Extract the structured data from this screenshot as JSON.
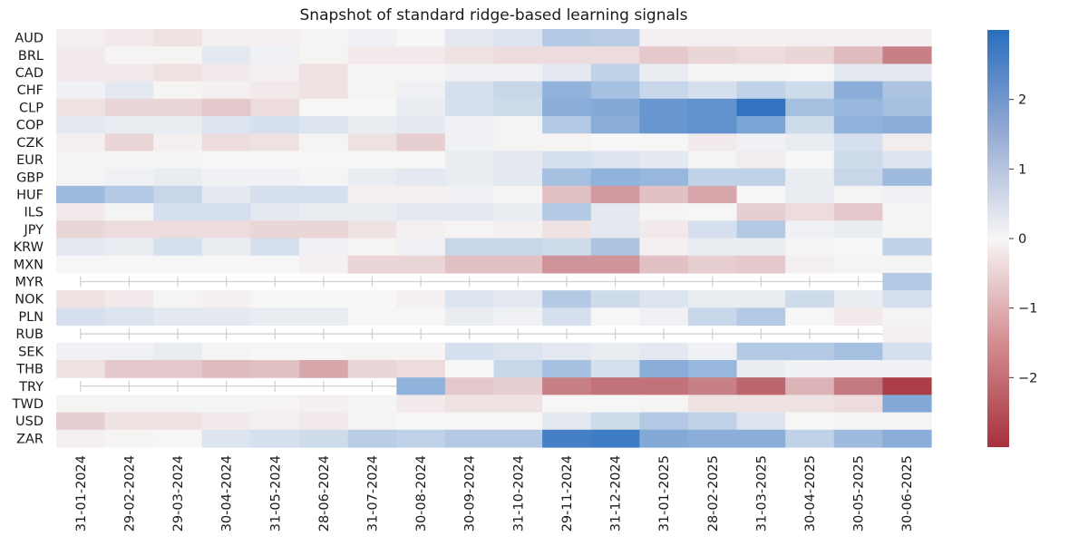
{
  "chart_data": {
    "type": "heatmap",
    "title": "Snapshot of standard ridge-based learning signals",
    "xlabel": "",
    "ylabel": "",
    "rows": [
      "AUD",
      "BRL",
      "CAD",
      "CHF",
      "CLP",
      "COP",
      "CZK",
      "EUR",
      "GBP",
      "HUF",
      "ILS",
      "JPY",
      "KRW",
      "MXN",
      "MYR",
      "NOK",
      "PLN",
      "RUB",
      "SEK",
      "THB",
      "TRY",
      "TWD",
      "USD",
      "ZAR"
    ],
    "columns": [
      "31-01-2024",
      "29-02-2024",
      "29-03-2024",
      "30-04-2024",
      "31-05-2024",
      "28-06-2024",
      "31-07-2024",
      "30-08-2024",
      "30-09-2024",
      "31-10-2024",
      "29-11-2024",
      "31-12-2024",
      "31-01-2025",
      "28-02-2025",
      "31-03-2025",
      "30-04-2025",
      "30-05-2025",
      "30-06-2025"
    ],
    "values": [
      [
        -0.1,
        -0.2,
        -0.3,
        -0.1,
        -0.1,
        -0.05,
        0.1,
        0.0,
        0.3,
        0.4,
        1.0,
        0.9,
        -0.1,
        -0.1,
        -0.1,
        -0.1,
        -0.1,
        -0.1
      ],
      [
        -0.2,
        -0.05,
        -0.05,
        0.3,
        0.1,
        -0.05,
        -0.2,
        -0.2,
        -0.3,
        -0.4,
        -0.4,
        -0.4,
        -0.7,
        -0.5,
        -0.4,
        -0.5,
        -0.9,
        -1.8
      ],
      [
        -0.2,
        -0.2,
        -0.3,
        -0.2,
        -0.1,
        -0.3,
        -0.05,
        -0.05,
        0.1,
        0.1,
        0.3,
        0.8,
        0.2,
        0.05,
        -0.05,
        0.0,
        0.3,
        0.3
      ],
      [
        0.1,
        0.3,
        -0.05,
        -0.1,
        -0.2,
        -0.3,
        -0.05,
        0.1,
        0.5,
        0.7,
        1.5,
        1.2,
        0.7,
        0.5,
        0.8,
        0.6,
        1.6,
        1.1
      ],
      [
        -0.3,
        -0.5,
        -0.5,
        -0.7,
        -0.4,
        0.0,
        0.0,
        0.2,
        0.5,
        0.6,
        1.6,
        1.7,
        2.1,
        2.2,
        2.9,
        1.2,
        1.4,
        1.2
      ],
      [
        0.3,
        0.2,
        0.2,
        0.4,
        0.5,
        0.4,
        0.2,
        0.3,
        0.1,
        0.05,
        1.0,
        1.6,
        2.1,
        2.2,
        1.8,
        0.6,
        1.5,
        1.6
      ],
      [
        -0.1,
        -0.5,
        -0.1,
        -0.4,
        -0.3,
        -0.05,
        -0.3,
        -0.6,
        0.1,
        0.05,
        -0.05,
        0.0,
        0.0,
        -0.2,
        0.1,
        0.2,
        0.5,
        -0.15
      ],
      [
        -0.05,
        0.05,
        0.05,
        0.0,
        0.0,
        0.0,
        0.0,
        0.0,
        0.2,
        0.3,
        0.5,
        0.4,
        0.3,
        0.05,
        -0.15,
        0.0,
        0.6,
        0.4
      ],
      [
        -0.05,
        0.1,
        0.2,
        0.1,
        0.1,
        0.05,
        0.2,
        0.3,
        0.2,
        0.3,
        1.2,
        1.5,
        1.4,
        0.8,
        0.8,
        0.2,
        0.7,
        1.3
      ],
      [
        1.3,
        1.0,
        0.7,
        0.3,
        0.5,
        0.5,
        -0.1,
        -0.1,
        0.1,
        -0.05,
        -0.8,
        -1.4,
        -0.8,
        -1.2,
        0.0,
        0.2,
        0.05,
        0.1
      ],
      [
        -0.2,
        0.05,
        0.5,
        0.5,
        0.3,
        0.2,
        0.2,
        0.3,
        0.3,
        0.2,
        1.0,
        0.3,
        -0.05,
        0.0,
        -0.6,
        -0.4,
        -0.7,
        -0.05
      ],
      [
        -0.5,
        -0.4,
        -0.4,
        -0.4,
        -0.5,
        -0.5,
        -0.3,
        -0.1,
        -0.05,
        -0.1,
        -0.3,
        0.3,
        -0.2,
        0.5,
        1.0,
        0.1,
        0.2,
        -0.05
      ],
      [
        0.3,
        0.2,
        0.5,
        0.2,
        0.5,
        0.1,
        -0.05,
        0.1,
        0.7,
        0.7,
        0.6,
        1.1,
        -0.1,
        0.2,
        0.2,
        -0.05,
        0.0,
        0.8
      ],
      [
        0.0,
        0.0,
        0.0,
        0.0,
        0.0,
        -0.1,
        -0.5,
        -0.5,
        -0.8,
        -0.8,
        -1.5,
        -1.5,
        -0.8,
        -0.6,
        -0.7,
        -0.1,
        0.05,
        0.05
      ],
      [
        null,
        null,
        null,
        null,
        null,
        null,
        null,
        null,
        null,
        null,
        null,
        null,
        null,
        null,
        null,
        null,
        null,
        1.0
      ],
      [
        -0.3,
        -0.2,
        -0.05,
        -0.1,
        0.0,
        0.0,
        0.0,
        -0.1,
        0.4,
        0.3,
        1.0,
        0.6,
        0.4,
        0.2,
        0.2,
        0.6,
        0.2,
        0.5
      ],
      [
        0.5,
        0.4,
        0.3,
        0.3,
        0.2,
        0.2,
        0.0,
        0.0,
        0.2,
        0.1,
        0.5,
        0.0,
        0.1,
        0.7,
        1.0,
        0.0,
        -0.2,
        0.05
      ],
      [
        null,
        null,
        null,
        null,
        null,
        null,
        null,
        null,
        null,
        null,
        null,
        null,
        null,
        null,
        null,
        null,
        null,
        -0.1
      ],
      [
        0.1,
        0.1,
        0.2,
        -0.05,
        0.0,
        0.0,
        -0.05,
        -0.05,
        0.5,
        0.4,
        0.3,
        0.2,
        0.3,
        0.1,
        1.0,
        1.0,
        1.2,
        0.5
      ],
      [
        -0.3,
        -0.7,
        -0.7,
        -0.9,
        -0.8,
        -1.2,
        -0.5,
        -0.4,
        0.0,
        0.7,
        1.2,
        0.5,
        1.6,
        1.4,
        0.2,
        0.1,
        0.1,
        0.1
      ],
      [
        null,
        null,
        null,
        null,
        null,
        null,
        null,
        1.5,
        -0.7,
        -0.6,
        -1.8,
        -2.0,
        -2.0,
        -1.8,
        -2.2,
        -1.0,
        -1.9,
        -2.8
      ],
      [
        -0.05,
        0.05,
        0.05,
        0.05,
        -0.05,
        -0.1,
        -0.05,
        -0.2,
        -0.3,
        -0.3,
        0.0,
        0.0,
        -0.05,
        -0.3,
        -0.3,
        -0.3,
        -0.4,
        1.7
      ],
      [
        -0.6,
        -0.3,
        -0.3,
        -0.2,
        -0.1,
        -0.2,
        -0.05,
        0.0,
        0.0,
        0.0,
        0.3,
        0.6,
        1.0,
        0.8,
        0.4,
        0.0,
        -0.05,
        -0.05
      ],
      [
        -0.1,
        -0.05,
        0.0,
        0.4,
        0.5,
        0.6,
        0.9,
        0.8,
        1.0,
        1.0,
        2.6,
        2.7,
        1.7,
        1.6,
        1.6,
        0.8,
        1.3,
        1.6
      ]
    ],
    "vmin": -3,
    "vmax": 3,
    "colormap": {
      "low": "#a7313c",
      "mid": "#f7f6f6",
      "high": "#2a6ebf"
    },
    "colorbar_ticks": [
      2,
      1,
      0,
      -1,
      -2
    ],
    "colorbar_tick_labels": [
      "2",
      "1",
      "0",
      "−1",
      "−2"
    ],
    "grid": false,
    "missing_style": "blank with light gray tick marks"
  }
}
